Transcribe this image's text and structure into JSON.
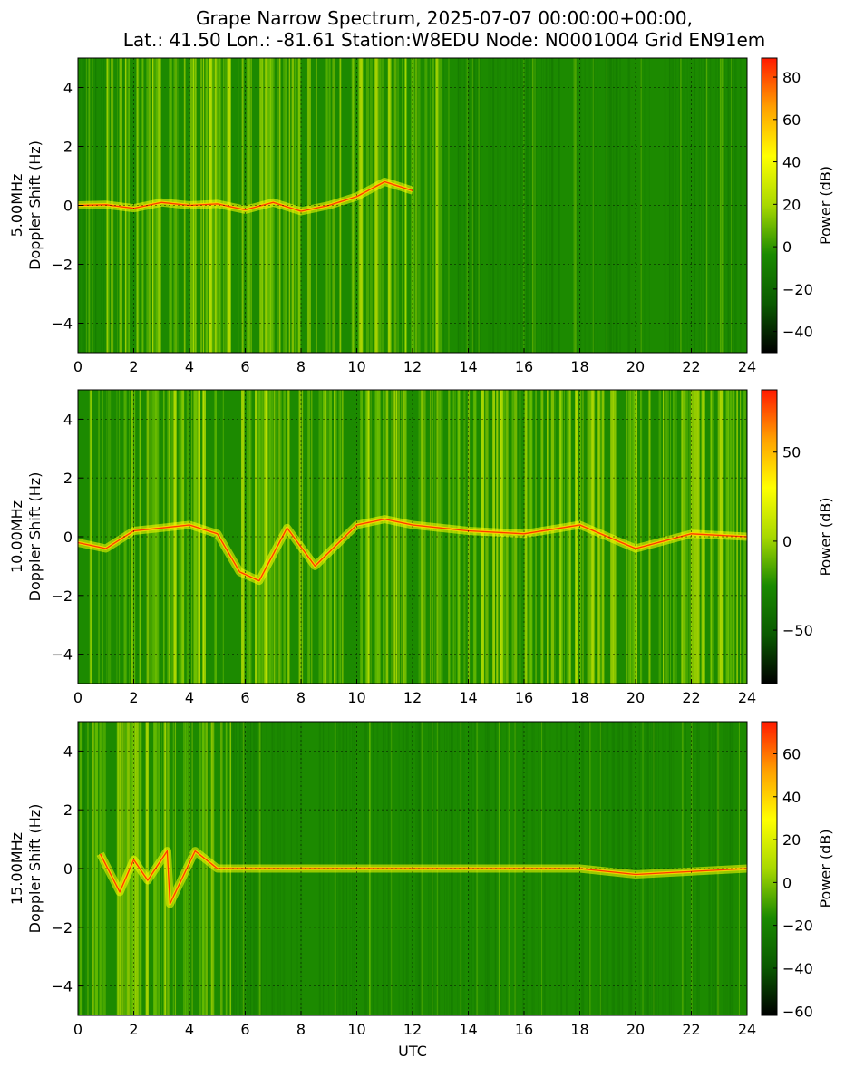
{
  "figure": {
    "title_line1": "Grape Narrow Spectrum, 2025-07-07 00:00:00+00:00,",
    "title_line2": "Lat.: 41.50 Lon.: -81.61 Station:W8EDU Node: N0001004 Grid EN91em",
    "colors": {
      "colormap": [
        "#000000",
        "#0a5a00",
        "#1a8a00",
        "#a8d800",
        "#ffff00",
        "#ffa000",
        "#ff1a00"
      ],
      "grid": "#000000",
      "frame": "#000000"
    }
  },
  "chart_data": [
    {
      "type": "heatmap",
      "frequency": "5.00MHz",
      "ylabel_line1": "5.00MHz",
      "ylabel_line2": "Doppler Shift (Hz)",
      "xlabel": "",
      "xlim": [
        0,
        24
      ],
      "ylim": [
        -5,
        5
      ],
      "xticks": [
        0,
        2,
        4,
        6,
        8,
        10,
        12,
        14,
        16,
        18,
        20,
        22,
        24
      ],
      "yticks": [
        -4,
        -2,
        0,
        2,
        4
      ],
      "grid": true,
      "colorbar": {
        "label": "Power (dB)",
        "range": [
          -50,
          89
        ],
        "ticks": [
          -40,
          -20,
          0,
          20,
          40,
          60,
          80
        ]
      },
      "carrier_trace": [
        [
          0,
          0
        ],
        [
          1,
          0.02
        ],
        [
          2,
          -0.1
        ],
        [
          3,
          0.1
        ],
        [
          4,
          0
        ],
        [
          5,
          0.05
        ],
        [
          6,
          -0.15
        ],
        [
          7,
          0.1
        ],
        [
          8,
          -0.2
        ],
        [
          9,
          0
        ],
        [
          10,
          0.3
        ],
        [
          11,
          0.8
        ],
        [
          12,
          0.5
        ]
      ],
      "strong_activity_hours": [
        1,
        13
      ]
    },
    {
      "type": "heatmap",
      "frequency": "10.00MHz",
      "ylabel_line1": "10.00MHz",
      "ylabel_line2": "Doppler Shift (Hz)",
      "xlabel": "",
      "xlim": [
        0,
        24
      ],
      "ylim": [
        -5,
        5
      ],
      "xticks": [
        0,
        2,
        4,
        6,
        8,
        10,
        12,
        14,
        16,
        18,
        20,
        22,
        24
      ],
      "yticks": [
        -4,
        -2,
        0,
        2,
        4
      ],
      "grid": true,
      "colorbar": {
        "label": "Power (dB)",
        "range": [
          -80,
          85
        ],
        "ticks": [
          -50,
          0,
          50
        ]
      },
      "carrier_trace": [
        [
          0,
          -0.2
        ],
        [
          1,
          -0.4
        ],
        [
          2,
          0.2
        ],
        [
          3,
          0.3
        ],
        [
          4,
          0.4
        ],
        [
          5,
          0.1
        ],
        [
          5.8,
          -1.2
        ],
        [
          6.5,
          -1.5
        ],
        [
          7.5,
          0.3
        ],
        [
          8.5,
          -1.0
        ],
        [
          10,
          0.4
        ],
        [
          11,
          0.6
        ],
        [
          12,
          0.4
        ],
        [
          14,
          0.2
        ],
        [
          16,
          0.1
        ],
        [
          18,
          0.4
        ],
        [
          20,
          -0.4
        ],
        [
          22,
          0.1
        ],
        [
          24,
          0
        ]
      ],
      "strong_activity_hours": [
        0,
        24
      ]
    },
    {
      "type": "heatmap",
      "frequency": "15.00MHz",
      "ylabel_line1": "15.00MHz",
      "ylabel_line2": "Doppler Shift (Hz)",
      "xlabel": "UTC",
      "xlim": [
        0,
        24
      ],
      "ylim": [
        -5,
        5
      ],
      "xticks": [
        0,
        2,
        4,
        6,
        8,
        10,
        12,
        14,
        16,
        18,
        20,
        22,
        24
      ],
      "yticks": [
        -4,
        -2,
        0,
        2,
        4
      ],
      "grid": true,
      "colorbar": {
        "label": "Power (dB)",
        "range": [
          -62,
          75
        ],
        "ticks": [
          -60,
          -40,
          -20,
          0,
          20,
          40,
          60
        ]
      },
      "carrier_trace": [
        [
          0.8,
          0.5
        ],
        [
          1.5,
          -0.8
        ],
        [
          2,
          0.3
        ],
        [
          2.5,
          -0.4
        ],
        [
          3.2,
          0.6
        ],
        [
          3.3,
          -1.2
        ],
        [
          4.2,
          0.6
        ],
        [
          5,
          0
        ],
        [
          11,
          0
        ],
        [
          14,
          0
        ],
        [
          18,
          0
        ],
        [
          20,
          -0.2
        ],
        [
          24,
          0
        ]
      ],
      "strong_activity_hours": [
        0.5,
        5.5
      ]
    }
  ]
}
